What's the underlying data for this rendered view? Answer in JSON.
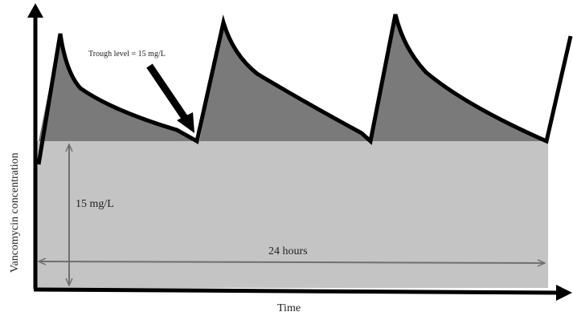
{
  "diagram": {
    "y_axis_label": "Vancomycin concentration",
    "x_axis_label": "Time",
    "annotation": "Trough level = 15 mg/L",
    "level_label": "15 mg/L",
    "span_label": "24 hours"
  },
  "colors": {
    "light_band": "#c4c4c4",
    "dark_fill": "#7a7a7a",
    "curve": "#000000",
    "dimension_line": "#6f6f6f"
  }
}
